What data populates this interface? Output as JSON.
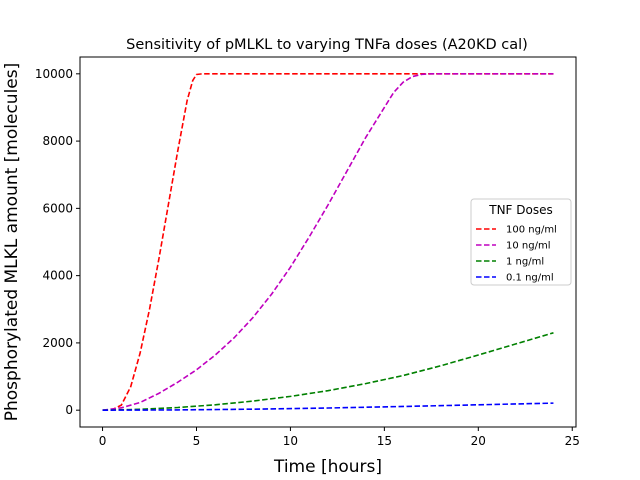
{
  "chart_data": {
    "type": "line",
    "title": "Sensitivity of pMLKL to varying TNFa doses (A20KD cal)",
    "xlabel": "Time [hours]",
    "ylabel": "Phosphorylated MLKL amount [molecules]",
    "xlim": [
      -1.2,
      25.2
    ],
    "ylim": [
      -500,
      10500
    ],
    "xticks": [
      0,
      5,
      10,
      15,
      20,
      25
    ],
    "yticks": [
      0,
      2000,
      4000,
      6000,
      8000,
      10000
    ],
    "grid": false,
    "legend": {
      "title": "TNF Doses",
      "placement": "center-right"
    },
    "series": [
      {
        "name": "100 ng/ml",
        "color": "#ff0000",
        "style": "dashed",
        "points": [
          [
            0,
            0
          ],
          [
            0.5,
            10
          ],
          [
            1,
            150
          ],
          [
            1.5,
            700
          ],
          [
            2,
            1700
          ],
          [
            2.5,
            3000
          ],
          [
            3,
            4500
          ],
          [
            3.5,
            6100
          ],
          [
            4,
            7700
          ],
          [
            4.5,
            9200
          ],
          [
            4.8,
            9800
          ],
          [
            5,
            9980
          ],
          [
            5.3,
            10000
          ],
          [
            10,
            10000
          ],
          [
            15,
            10000
          ],
          [
            20,
            10000
          ],
          [
            24,
            10000
          ]
        ]
      },
      {
        "name": "10 ng/ml",
        "color": "#bf00bf",
        "style": "dashed",
        "points": [
          [
            0,
            0
          ],
          [
            1,
            70
          ],
          [
            2,
            230
          ],
          [
            3,
            500
          ],
          [
            4,
            830
          ],
          [
            5,
            1200
          ],
          [
            6,
            1640
          ],
          [
            7,
            2150
          ],
          [
            8,
            2750
          ],
          [
            9,
            3450
          ],
          [
            10,
            4250
          ],
          [
            11,
            5150
          ],
          [
            12,
            6100
          ],
          [
            13,
            7100
          ],
          [
            14,
            8100
          ],
          [
            15,
            9000
          ],
          [
            15.5,
            9450
          ],
          [
            16,
            9750
          ],
          [
            16.5,
            9920
          ],
          [
            17,
            9985
          ],
          [
            17.5,
            10000
          ],
          [
            24,
            10000
          ]
        ]
      },
      {
        "name": "1 ng/ml",
        "color": "#008000",
        "style": "dashed",
        "points": [
          [
            0,
            0
          ],
          [
            2,
            25
          ],
          [
            4,
            80
          ],
          [
            6,
            160
          ],
          [
            8,
            270
          ],
          [
            10,
            410
          ],
          [
            12,
            580
          ],
          [
            14,
            790
          ],
          [
            16,
            1030
          ],
          [
            18,
            1320
          ],
          [
            20,
            1640
          ],
          [
            22,
            1970
          ],
          [
            24,
            2300
          ]
        ]
      },
      {
        "name": "0.1 ng/ml",
        "color": "#0000ff",
        "style": "dashed",
        "points": [
          [
            0,
            0
          ],
          [
            4,
            8
          ],
          [
            8,
            30
          ],
          [
            12,
            65
          ],
          [
            16,
            110
          ],
          [
            20,
            160
          ],
          [
            24,
            210
          ]
        ]
      }
    ]
  }
}
